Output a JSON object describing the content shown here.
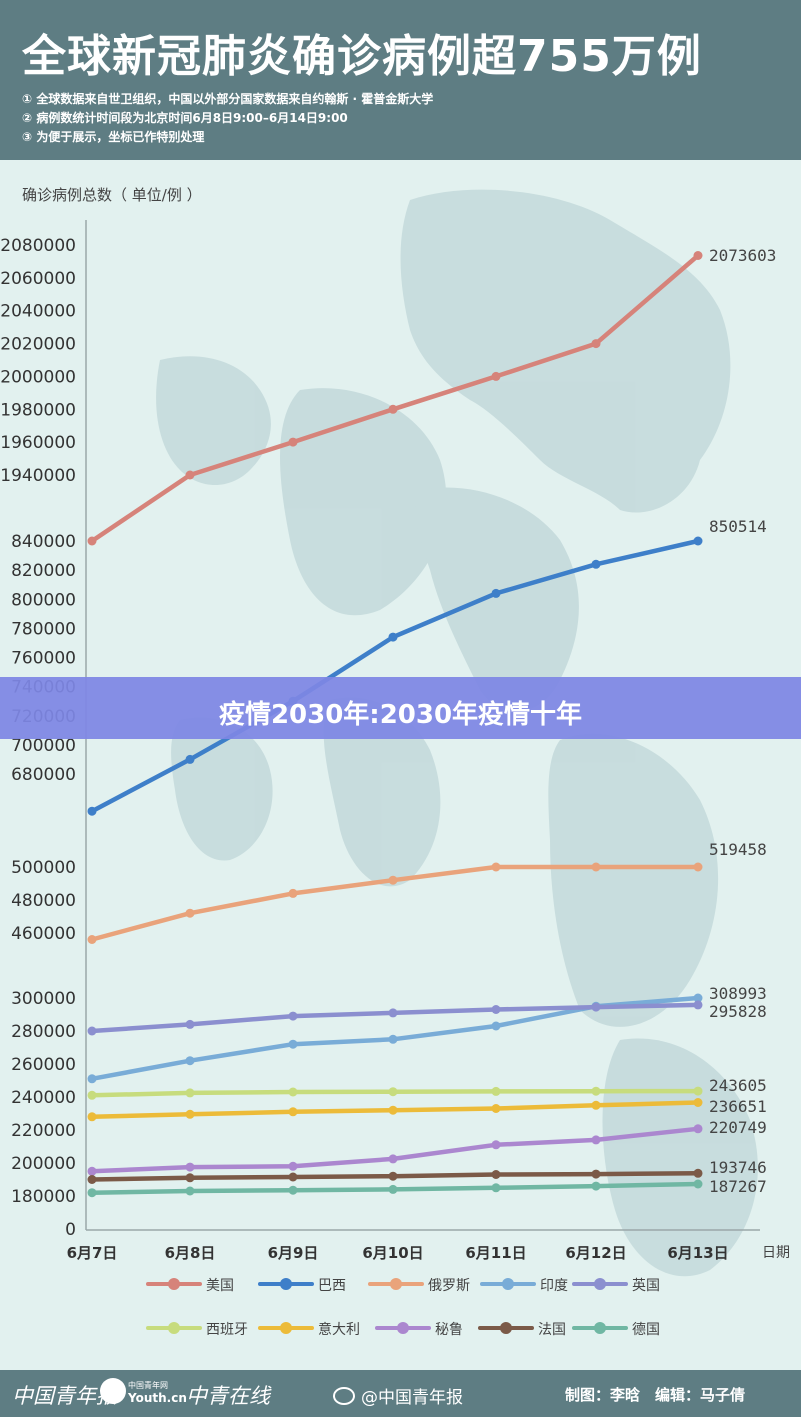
{
  "header": {
    "title": "全球新冠肺炎确诊病例超755万例",
    "notes": [
      "① 全球数据来自世卫组织，中国以外部分国家数据来自约翰斯 · 霍普金斯大学",
      "② 病例数统计时间段为北京时间6月8日9:00–6月14日9:00",
      "③ 为便于展示，坐标已作特别处理"
    ]
  },
  "banner": {
    "text": "疫情2030年:2030年疫情十年"
  },
  "chart_data": {
    "type": "line",
    "ylabel": "确诊病例总数（ 单位/例 ）",
    "xlabel": "日期",
    "categories": [
      "6月7日",
      "6月8日",
      "6月9日",
      "6月10日",
      "6月11日",
      "6月12日",
      "6月13日"
    ],
    "y_axis_broken": true,
    "y_ticks": [
      "0",
      "180000",
      "200000",
      "220000",
      "240000",
      "260000",
      "280000",
      "300000",
      "460000",
      "480000",
      "500000",
      "680000",
      "700000",
      "720000",
      "740000",
      "760000",
      "780000",
      "800000",
      "820000",
      "840000",
      "1940000",
      "1960000",
      "1980000",
      "2000000",
      "2020000",
      "2040000",
      "2060000",
      "2080000"
    ],
    "series": [
      {
        "name": "美国",
        "color": "#d6837a",
        "values": [
          1920000,
          1940000,
          1960000,
          1980000,
          2000000,
          2020000,
          2073603
        ],
        "end_label": "2073603"
      },
      {
        "name": "巴西",
        "color": "#3e7fc9",
        "values": [
          672000,
          690000,
          730000,
          774000,
          804000,
          824000,
          850514
        ],
        "end_label": "850514"
      },
      {
        "name": "俄罗斯",
        "color": "#e9a37b",
        "values": [
          458000,
          472000,
          484000,
          492000,
          502000,
          510000,
          519458
        ],
        "end_label": "519458"
      },
      {
        "name": "印度",
        "color": "#79acd7",
        "values": [
          251000,
          262000,
          272000,
          275000,
          283000,
          295000,
          308993
        ],
        "end_label": "308993"
      },
      {
        "name": "英国",
        "color": "#8b8fcf",
        "values": [
          280000,
          284000,
          289000,
          291000,
          293000,
          294500,
          295828
        ],
        "end_label": "295828"
      },
      {
        "name": "西班牙",
        "color": "#c7dc7d",
        "values": [
          241000,
          242500,
          243000,
          243200,
          243400,
          243500,
          243605
        ],
        "end_label": "243605"
      },
      {
        "name": "意大利",
        "color": "#ecbb39",
        "values": [
          228000,
          229500,
          231000,
          232000,
          233000,
          235000,
          236651
        ],
        "end_label": "236651"
      },
      {
        "name": "秘鲁",
        "color": "#ab87cf",
        "values": [
          195000,
          197500,
          198000,
          202500,
          211000,
          214000,
          220749
        ],
        "end_label": "220749"
      },
      {
        "name": "法国",
        "color": "#7b5a48",
        "values": [
          190000,
          191000,
          191500,
          192000,
          193000,
          193300,
          193746
        ],
        "end_label": "193746"
      },
      {
        "name": "德国",
        "color": "#70b7a3",
        "values": [
          182000,
          183000,
          183500,
          184000,
          185000,
          186000,
          187267
        ],
        "end_label": "187267"
      }
    ]
  },
  "legend_rows": [
    [
      "美国",
      "巴西",
      "俄罗斯",
      "印度",
      "英国"
    ],
    [
      "西班牙",
      "意大利",
      "秘鲁",
      "法国",
      "德国"
    ]
  ],
  "footer": {
    "logo_1": "中国青年报",
    "youth_small": "中国青年网",
    "youth_big": "Youth.cn",
    "logo_3": "中青在线",
    "weibo": "@中国青年报",
    "credit": "制图：李晗　编辑：马子倩"
  }
}
